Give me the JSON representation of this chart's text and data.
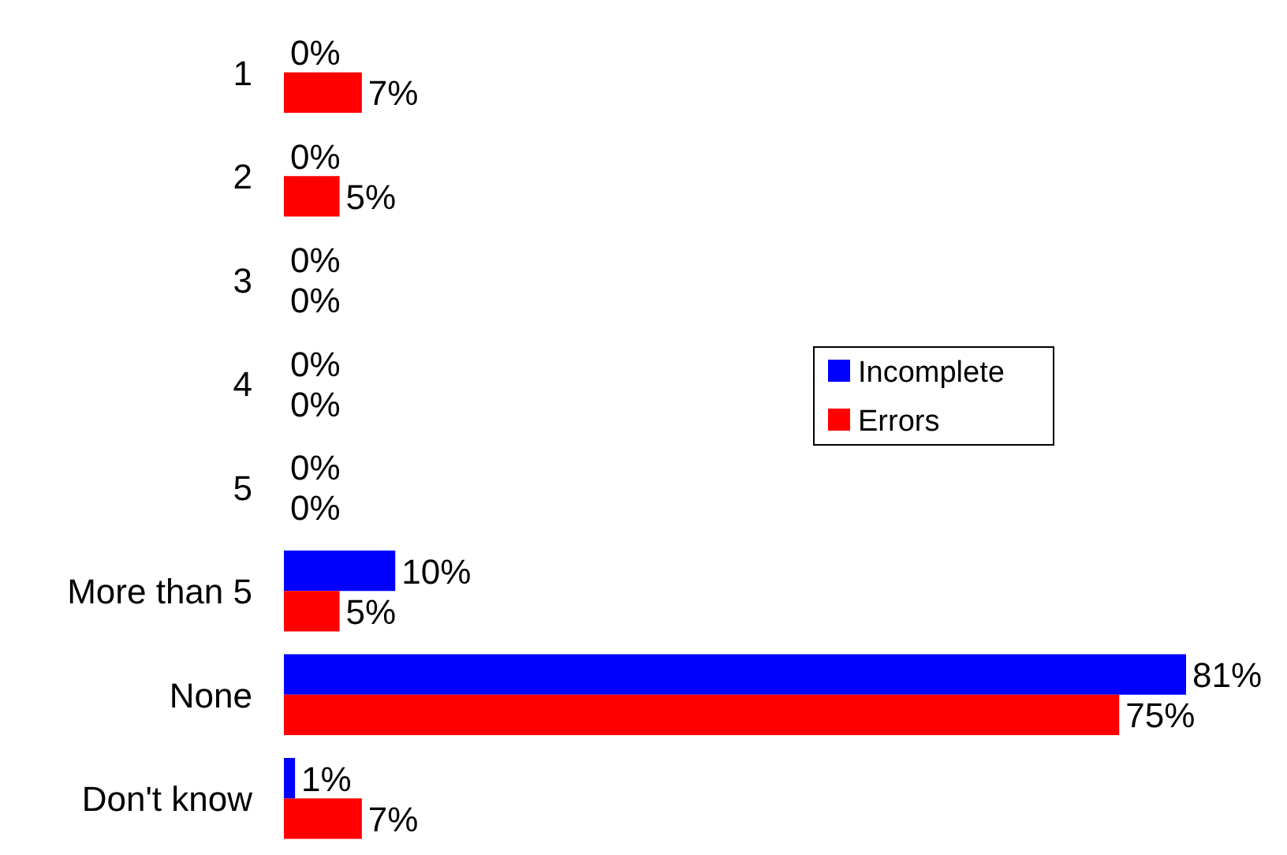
{
  "chart_data": {
    "type": "bar",
    "orientation": "horizontal",
    "categories": [
      "1",
      "2",
      "3",
      "4",
      "5",
      "More than 5",
      "None",
      "Don't know"
    ],
    "series": [
      {
        "name": "Incomplete",
        "color": "#0000ff",
        "values": [
          0,
          0,
          0,
          0,
          0,
          10,
          81,
          1
        ],
        "value_labels": [
          "0%",
          "0%",
          "0%",
          "0%",
          "0%",
          "10%",
          "81%",
          "1%"
        ]
      },
      {
        "name": "Errors",
        "color": "#ff0000",
        "values": [
          7,
          5,
          0,
          0,
          0,
          5,
          75,
          7
        ],
        "value_labels": [
          "7%",
          "5%",
          "0%",
          "0%",
          "0%",
          "5%",
          "75%",
          "7%"
        ]
      }
    ],
    "legend": "right",
    "grid": false
  }
}
